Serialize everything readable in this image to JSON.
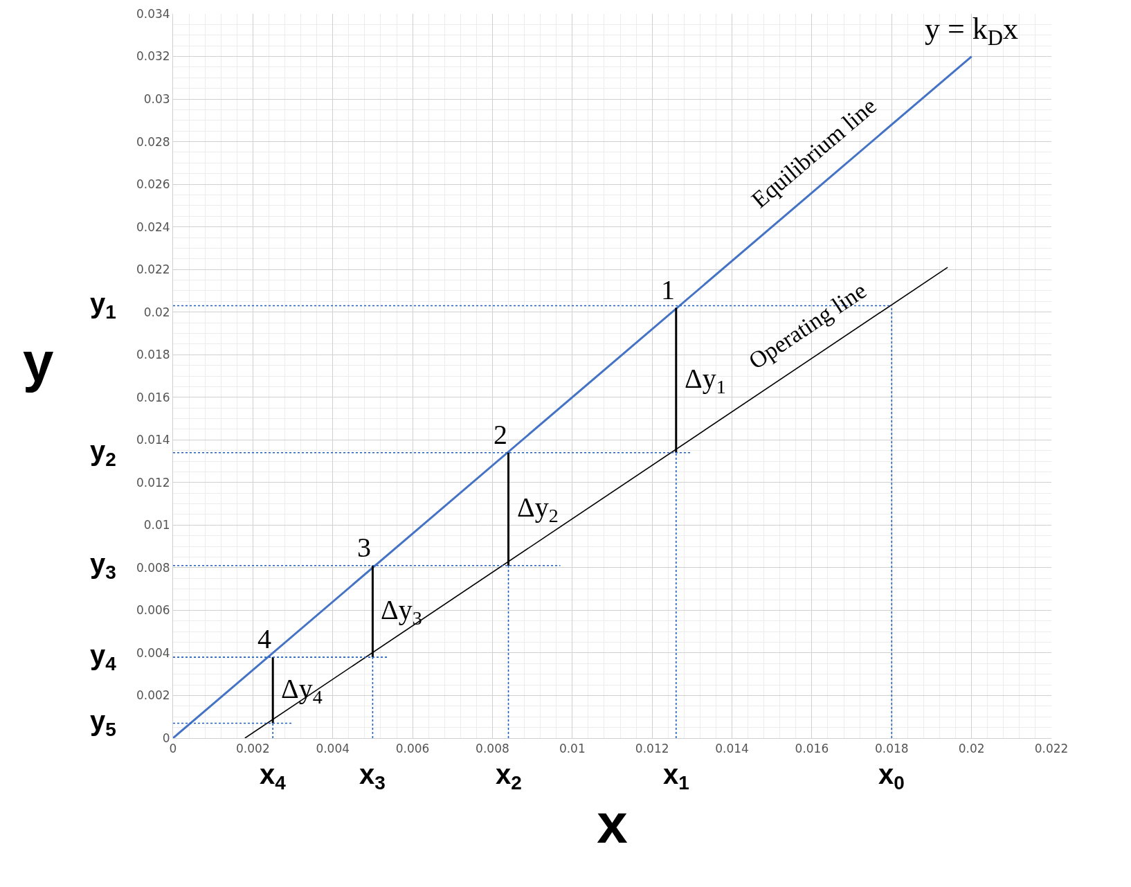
{
  "chart_data": {
    "type": "line",
    "xlabel": "x",
    "ylabel": "y",
    "xlim": [
      0,
      0.022
    ],
    "ylim": [
      0,
      0.034
    ],
    "xticks": [
      0,
      0.002,
      0.004,
      0.006,
      0.008,
      0.01,
      0.012,
      0.014,
      0.016,
      0.018,
      0.02,
      0.022
    ],
    "yticks": [
      0,
      0.002,
      0.004,
      0.006,
      0.008,
      0.01,
      0.012,
      0.014,
      0.016,
      0.018,
      0.02,
      0.022,
      0.024,
      0.026,
      0.028,
      0.03,
      0.032,
      0.034
    ],
    "grid": true,
    "legend": false,
    "series": [
      {
        "name": "Equilibrium line",
        "color": "#4472c4",
        "x": [
          0,
          0.02
        ],
        "values": [
          0,
          0.032
        ],
        "line_style": "solid"
      },
      {
        "name": "Operating line",
        "color": "#000000",
        "x": [
          0.0018,
          0.0194
        ],
        "values": [
          0,
          0.0221
        ],
        "line_style": "solid"
      },
      {
        "color": "#000000",
        "x": [
          0.0126,
          0.0126
        ],
        "values": [
          0.0202,
          0.0134
        ],
        "line_style": "solid"
      },
      {
        "color": "#000000",
        "x": [
          0.0084,
          0.0084
        ],
        "values": [
          0.0134,
          0.0081
        ],
        "line_style": "solid"
      },
      {
        "color": "#000000",
        "x": [
          0.005,
          0.005
        ],
        "values": [
          0.0081,
          0.0038
        ],
        "line_style": "solid"
      },
      {
        "color": "#000000",
        "x": [
          0.0025,
          0.0025
        ],
        "values": [
          0.0038,
          0.0007
        ],
        "line_style": "solid"
      },
      {
        "color": "#1f5fbf",
        "x": [
          0,
          0.018
        ],
        "values": [
          0.0203,
          0.0203
        ],
        "line_style": "dotted"
      },
      {
        "color": "#1f5fbf",
        "x": [
          0,
          0.013
        ],
        "values": [
          0.0134,
          0.0134
        ],
        "line_style": "dotted"
      },
      {
        "color": "#1f5fbf",
        "x": [
          0,
          0.0097
        ],
        "values": [
          0.0081,
          0.0081
        ],
        "line_style": "dotted"
      },
      {
        "color": "#1f5fbf",
        "x": [
          0,
          0.0054
        ],
        "values": [
          0.0038,
          0.0038
        ],
        "line_style": "dotted"
      },
      {
        "color": "#1f5fbf",
        "x": [
          0,
          0.003
        ],
        "values": [
          0.0007,
          0.0007
        ],
        "line_style": "dotted"
      },
      {
        "color": "#1f5fbf",
        "x": [
          0.018,
          0.018
        ],
        "values": [
          0,
          0.0203
        ],
        "line_style": "dotted"
      },
      {
        "color": "#1f5fbf",
        "x": [
          0.0126,
          0.0126
        ],
        "values": [
          0,
          0.0134
        ],
        "line_style": "dotted"
      },
      {
        "color": "#1f5fbf",
        "x": [
          0.0084,
          0.0084
        ],
        "values": [
          0,
          0.0081
        ],
        "line_style": "dotted"
      },
      {
        "color": "#1f5fbf",
        "x": [
          0.005,
          0.005
        ],
        "values": [
          0,
          0.0038
        ],
        "line_style": "dotted"
      },
      {
        "color": "#1f5fbf",
        "x": [
          0.0025,
          0.0025
        ],
        "values": [
          0,
          0.0007
        ],
        "line_style": "dotted"
      }
    ],
    "annotations": [
      "y = k$_{D}$x",
      "1",
      "2",
      "3",
      "4",
      "Δy$_{1}$",
      "Δy$_{2}$",
      "Δy$_{3}$",
      "Δy$_{4}$",
      "y$_{1}$",
      "y$_{2}$",
      "y$_{3}$",
      "y$_{4}$",
      "y$_{5}$",
      "x$_{1}$",
      "x$_{2}$",
      "x$_{3}$",
      "x$_{4}$",
      "x$_{0}$"
    ]
  }
}
